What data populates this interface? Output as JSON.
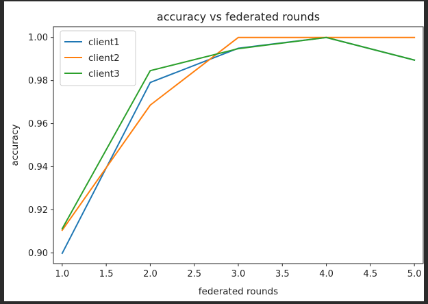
{
  "chart_data": {
    "type": "line",
    "title": "accuracy vs federated rounds",
    "xlabel": "federated rounds",
    "ylabel": "accuracy",
    "x": [
      1.0,
      2.0,
      3.0,
      4.0,
      5.0
    ],
    "xlim": [
      0.9,
      5.1
    ],
    "ylim": [
      0.895,
      1.005
    ],
    "xticks": [
      "1.0",
      "1.5",
      "2.0",
      "2.5",
      "3.0",
      "3.5",
      "4.0",
      "4.5",
      "5.0"
    ],
    "yticks": [
      "0.90",
      "0.92",
      "0.94",
      "0.96",
      "0.98",
      "1.00"
    ],
    "grid": false,
    "legend_position": "upper-left",
    "series": [
      {
        "name": "client1",
        "color": "#1f77b4",
        "values": [
          0.8998,
          0.9791,
          0.995,
          1.0,
          0.9895
        ]
      },
      {
        "name": "client2",
        "color": "#ff7f0e",
        "values": [
          0.9105,
          0.9686,
          1.0,
          1.0,
          1.0
        ]
      },
      {
        "name": "client3",
        "color": "#2ca02c",
        "values": [
          0.9112,
          0.9846,
          0.9948,
          1.0,
          0.9895
        ]
      }
    ]
  }
}
